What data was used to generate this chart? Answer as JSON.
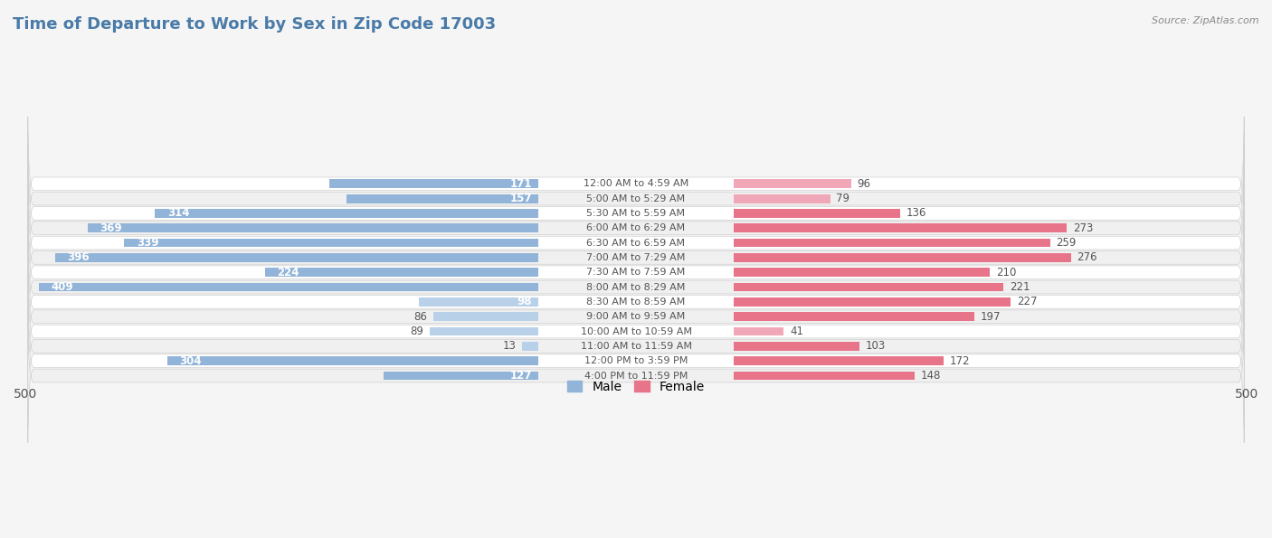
{
  "title": "Time of Departure to Work by Sex in Zip Code 17003",
  "source": "Source: ZipAtlas.com",
  "categories": [
    "12:00 AM to 4:59 AM",
    "5:00 AM to 5:29 AM",
    "5:30 AM to 5:59 AM",
    "6:00 AM to 6:29 AM",
    "6:30 AM to 6:59 AM",
    "7:00 AM to 7:29 AM",
    "7:30 AM to 7:59 AM",
    "8:00 AM to 8:29 AM",
    "8:30 AM to 8:59 AM",
    "9:00 AM to 9:59 AM",
    "10:00 AM to 10:59 AM",
    "11:00 AM to 11:59 AM",
    "12:00 PM to 3:59 PM",
    "4:00 PM to 11:59 PM"
  ],
  "male_values": [
    171,
    157,
    314,
    369,
    339,
    396,
    224,
    409,
    98,
    86,
    89,
    13,
    304,
    127
  ],
  "female_values": [
    96,
    79,
    136,
    273,
    259,
    276,
    210,
    221,
    227,
    197,
    41,
    103,
    172,
    148
  ],
  "male_color": "#92B4D8",
  "female_color": "#E8748A",
  "male_color_light": "#B8D0E8",
  "female_color_light": "#F0A8B8",
  "male_label": "Male",
  "female_label": "Female",
  "axis_max": 500,
  "title_fontsize": 13,
  "label_fontsize": 8.5,
  "bar_height": 0.6,
  "row_colors": [
    "#ffffff",
    "#f0f0f0"
  ],
  "row_border_color": "#d0d0d0",
  "bg_color": "#f5f5f5"
}
